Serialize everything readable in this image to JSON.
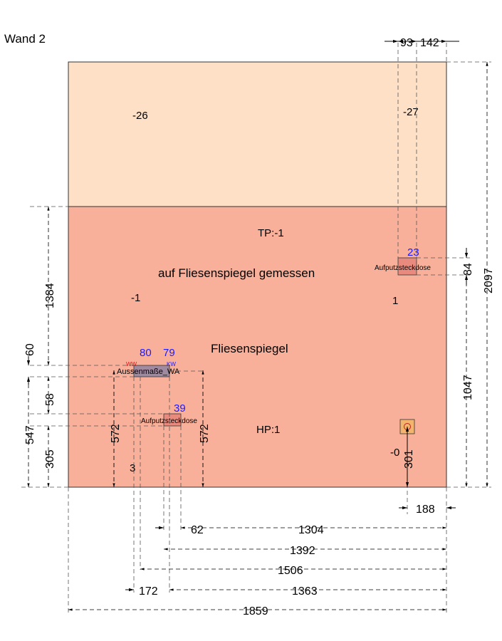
{
  "title": "Wand 2",
  "colors": {
    "upper_area": "#fde0c5",
    "tile_area": "#f9b09a",
    "outlet": "#e88a7e",
    "outside_box": "#a08aa0",
    "ww_label": "#e01010",
    "blue_label": "#1a1aff"
  },
  "zones": {
    "upper_left_value": "-26",
    "upper_right_value": "-27",
    "tp_label": "TP:-1",
    "measured_note": "auf Fliesenspiegel gemessen",
    "left_value": "-1",
    "right_value": "1",
    "tile_label": "Fliesenspiegel",
    "hp_label": "HP:1",
    "bottom_left_value": "3",
    "bottom_right_value": "-0"
  },
  "objects": {
    "outlet_top_right": {
      "label": "Aufputzsteckdose",
      "size": "23"
    },
    "outside_wa": {
      "label": "Aussenmaße_WA",
      "left_size": "80",
      "right_size": "79",
      "ww": "WW",
      "kw": "KW"
    },
    "outlet_mid": {
      "label": "Aufputzsteckdose",
      "size": "39"
    }
  },
  "dimensions": {
    "top_93": "93",
    "top_142": "142",
    "right_84": "84",
    "right_1047": "1047",
    "right_2097": "2097",
    "left_1384": "1384",
    "left_60": "60",
    "left_58": "58",
    "left_547": "547",
    "left_305": "305",
    "inner_572_left": "572",
    "inner_572_right": "572",
    "inner_301": "301",
    "bottom_188": "188",
    "bottom_62": "62",
    "bottom_1304": "1304",
    "bottom_1392": "1392",
    "bottom_1506": "1506",
    "bottom_172": "172",
    "bottom_1363": "1363",
    "bottom_1859": "1859"
  }
}
